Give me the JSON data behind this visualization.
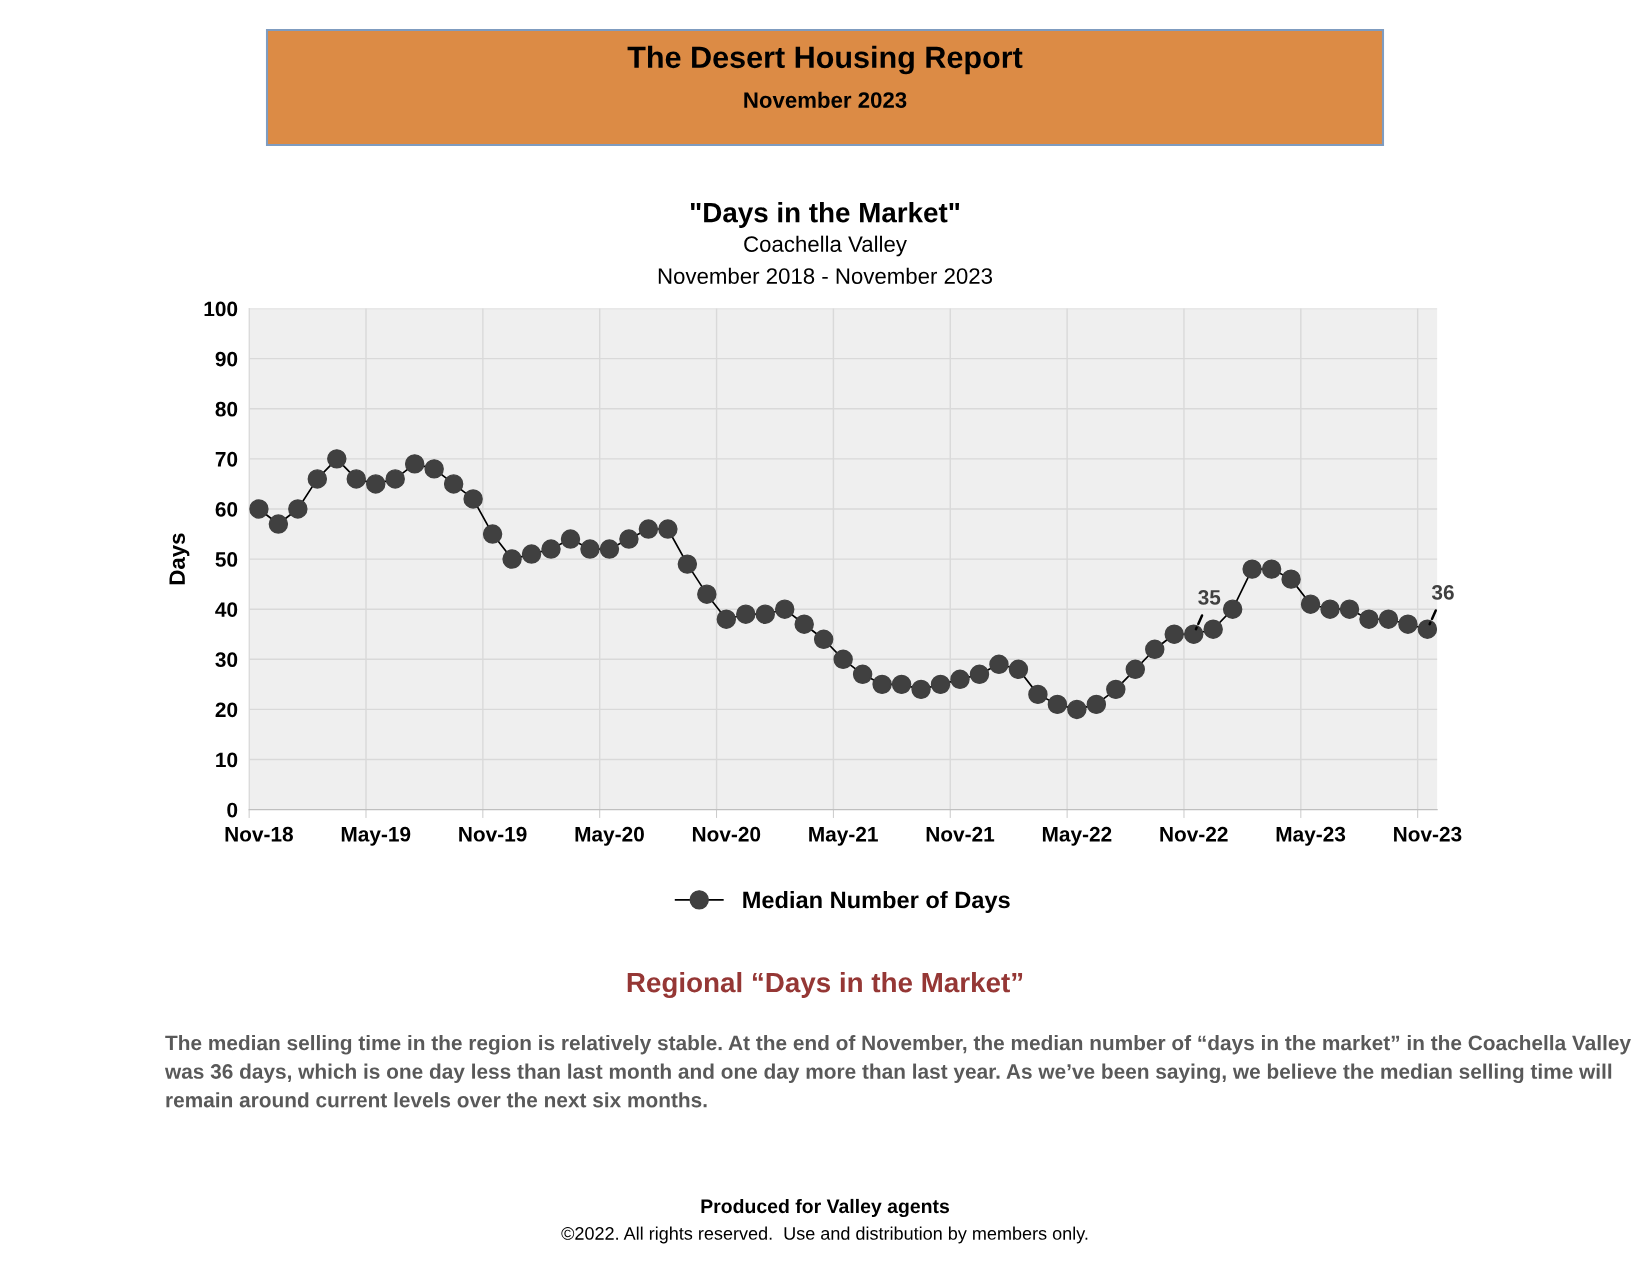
{
  "chart_data": {
    "type": "line",
    "title": "\"Days in the Market\"",
    "subtitle": "Coachella Valley\nNovember 2018 - November 2023",
    "ylabel": "Days",
    "categories": [
      "Nov-18",
      null,
      null,
      null,
      null,
      null,
      "May-19",
      null,
      null,
      null,
      null,
      null,
      "Nov-19",
      null,
      null,
      null,
      null,
      null,
      "May-20",
      null,
      null,
      null,
      null,
      null,
      "Nov-20",
      null,
      null,
      null,
      null,
      null,
      "May-21",
      null,
      null,
      null,
      null,
      null,
      "Nov-21",
      null,
      null,
      null,
      null,
      null,
      "May-22",
      null,
      null,
      null,
      null,
      null,
      "Nov-22",
      null,
      null,
      null,
      null,
      null,
      "May-23",
      null,
      null,
      null,
      null,
      null,
      "Nov-23"
    ],
    "series": [
      {
        "name": "Median Number of Days",
        "color": "#404040",
        "values": [
          60,
          57,
          60,
          66,
          70,
          66,
          65,
          66,
          69,
          68,
          65,
          62,
          55,
          50,
          51,
          52,
          54,
          52,
          52,
          54,
          56,
          56,
          49,
          43,
          38,
          39,
          39,
          40,
          37,
          34,
          30,
          27,
          25,
          25,
          24,
          25,
          26,
          27,
          29,
          28,
          23,
          21,
          20,
          21,
          24,
          28,
          32,
          35,
          35,
          36,
          40,
          48,
          48,
          46,
          41,
          40,
          40,
          38,
          38,
          37,
          36
        ]
      }
    ],
    "ylim": [
      0,
      100
    ],
    "yticks": [
      0,
      10,
      20,
      30,
      40,
      50,
      60,
      70,
      80,
      90,
      100
    ],
    "grid": true,
    "legend": "bottom",
    "marker": "circle",
    "line_style": "solid",
    "annotations": [
      "The Desert Housing Report",
      "November 2023",
      {
        "text": "35",
        "x": "Nov-22",
        "y": 35
      },
      {
        "text": "36",
        "x": "Nov-23",
        "y": 36
      },
      "Regional “Days in the Market”",
      "The median selling time in the region is relatively stable. At the end of November, the median number of “days in the market” in the Coachella Valley was 36 days, which is one day less than last month and one day more than last year. As we’ve been saying, we believe the median selling time will remain around current levels over the next six months.",
      "Produced for Valley agents",
      "©2022. All rights reserved.  Use and distribution by members only."
    ]
  }
}
